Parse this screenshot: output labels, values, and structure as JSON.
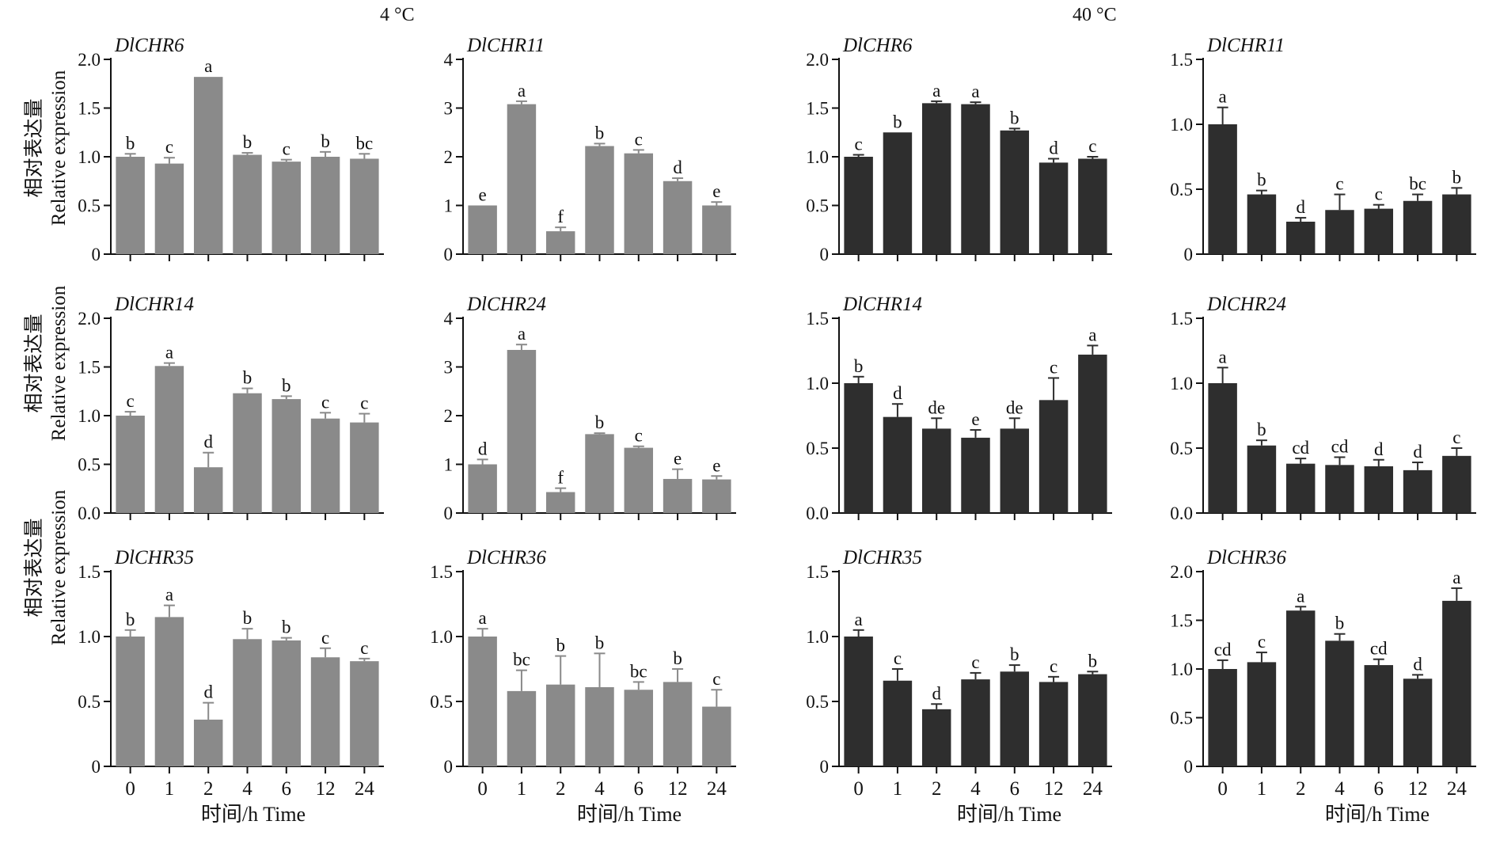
{
  "conditions": [
    "4 °C",
    "40 °C"
  ],
  "y_label_cn": "相对表达量",
  "y_label_en": "Relative expression",
  "x_label": "时间/h  Time",
  "colors": {
    "cold_bar": "#8a8a8a",
    "heat_bar": "#2e2e2e",
    "axis": "#111111"
  },
  "chart_data": [
    {
      "type": "bar",
      "condition": "4 °C",
      "title": "DlCHR6",
      "categories": [
        "0",
        "1",
        "2",
        "4",
        "6",
        "12",
        "24"
      ],
      "values": [
        1.0,
        0.93,
        1.82,
        1.02,
        0.95,
        1.0,
        0.98
      ],
      "errors": [
        0.03,
        0.06,
        0.0,
        0.02,
        0.02,
        0.05,
        0.05
      ],
      "letters": [
        "b",
        "c",
        "a",
        "b",
        "c",
        "b",
        "bc"
      ],
      "ylim": [
        0,
        2.0
      ],
      "yticks": [
        "0",
        "0.5",
        "1.0",
        "1.5",
        "2.0"
      ]
    },
    {
      "type": "bar",
      "condition": "4 °C",
      "title": "DlCHR11",
      "categories": [
        "0",
        "1",
        "2",
        "4",
        "6",
        "12",
        "24"
      ],
      "values": [
        1.0,
        3.08,
        0.47,
        2.22,
        2.07,
        1.5,
        1.0
      ],
      "errors": [
        0.0,
        0.06,
        0.08,
        0.05,
        0.07,
        0.06,
        0.07
      ],
      "letters": [
        "e",
        "a",
        "f",
        "b",
        "c",
        "d",
        "e"
      ],
      "ylim": [
        0,
        4
      ],
      "yticks": [
        "0",
        "1",
        "2",
        "3",
        "4"
      ]
    },
    {
      "type": "bar",
      "condition": "40 °C",
      "title": "DlCHR6",
      "categories": [
        "0",
        "1",
        "2",
        "4",
        "6",
        "12",
        "24"
      ],
      "values": [
        1.0,
        1.25,
        1.55,
        1.54,
        1.27,
        0.94,
        0.98
      ],
      "errors": [
        0.02,
        0.0,
        0.02,
        0.02,
        0.02,
        0.04,
        0.02
      ],
      "letters": [
        "c",
        "b",
        "a",
        "a",
        "b",
        "d",
        "c"
      ],
      "ylim": [
        0,
        2.0
      ],
      "yticks": [
        "0",
        "0.5",
        "1.0",
        "1.5",
        "2.0"
      ]
    },
    {
      "type": "bar",
      "condition": "40 °C",
      "title": "DlCHR11",
      "categories": [
        "0",
        "1",
        "2",
        "4",
        "6",
        "12",
        "24"
      ],
      "values": [
        1.0,
        0.46,
        0.25,
        0.34,
        0.35,
        0.41,
        0.46
      ],
      "errors": [
        0.13,
        0.03,
        0.03,
        0.12,
        0.03,
        0.05,
        0.05
      ],
      "letters": [
        "a",
        "b",
        "d",
        "c",
        "c",
        "bc",
        "b"
      ],
      "ylim": [
        0,
        1.5
      ],
      "yticks": [
        "0",
        "0.5",
        "1.0",
        "1.5"
      ]
    },
    {
      "type": "bar",
      "condition": "4 °C",
      "title": "DlCHR14",
      "categories": [
        "0",
        "1",
        "2",
        "4",
        "6",
        "12",
        "24"
      ],
      "values": [
        1.0,
        1.51,
        0.47,
        1.23,
        1.17,
        0.97,
        0.93
      ],
      "errors": [
        0.04,
        0.03,
        0.15,
        0.05,
        0.03,
        0.06,
        0.09
      ],
      "letters": [
        "c",
        "a",
        "d",
        "b",
        "b",
        "c",
        "c"
      ],
      "ylim": [
        0,
        2.0
      ],
      "yticks": [
        "0.0",
        "0.5",
        "1.0",
        "1.5",
        "2.0"
      ]
    },
    {
      "type": "bar",
      "condition": "4 °C",
      "title": "DlCHR24",
      "categories": [
        "0",
        "1",
        "2",
        "4",
        "6",
        "12",
        "24"
      ],
      "values": [
        1.0,
        3.35,
        0.43,
        1.62,
        1.34,
        0.7,
        0.69
      ],
      "errors": [
        0.1,
        0.11,
        0.08,
        0.02,
        0.03,
        0.2,
        0.07
      ],
      "letters": [
        "d",
        "a",
        "f",
        "b",
        "c",
        "e",
        "e"
      ],
      "ylim": [
        0,
        4
      ],
      "yticks": [
        "0",
        "1",
        "2",
        "3",
        "4"
      ]
    },
    {
      "type": "bar",
      "condition": "40 °C",
      "title": "DlCHR14",
      "categories": [
        "0",
        "1",
        "2",
        "4",
        "6",
        "12",
        "24"
      ],
      "values": [
        1.0,
        0.74,
        0.65,
        0.58,
        0.65,
        0.87,
        1.22
      ],
      "errors": [
        0.05,
        0.1,
        0.08,
        0.06,
        0.08,
        0.17,
        0.07
      ],
      "letters": [
        "b",
        "d",
        "de",
        "e",
        "de",
        "c",
        "a"
      ],
      "ylim": [
        0,
        1.5
      ],
      "yticks": [
        "0.0",
        "0.5",
        "1.0",
        "1.5"
      ]
    },
    {
      "type": "bar",
      "condition": "40 °C",
      "title": "DlCHR24",
      "categories": [
        "0",
        "1",
        "2",
        "4",
        "6",
        "12",
        "24"
      ],
      "values": [
        1.0,
        0.52,
        0.38,
        0.37,
        0.36,
        0.33,
        0.44
      ],
      "errors": [
        0.12,
        0.04,
        0.04,
        0.06,
        0.05,
        0.06,
        0.06
      ],
      "letters": [
        "a",
        "b",
        "cd",
        "cd",
        "d",
        "d",
        "c"
      ],
      "ylim": [
        0,
        1.5
      ],
      "yticks": [
        "0.0",
        "0.5",
        "1.0",
        "1.5"
      ]
    },
    {
      "type": "bar",
      "condition": "4 °C",
      "title": "DlCHR35",
      "categories": [
        "0",
        "1",
        "2",
        "4",
        "6",
        "12",
        "24"
      ],
      "values": [
        1.0,
        1.15,
        0.36,
        0.98,
        0.97,
        0.84,
        0.81
      ],
      "errors": [
        0.05,
        0.09,
        0.13,
        0.08,
        0.02,
        0.07,
        0.02
      ],
      "letters": [
        "b",
        "a",
        "d",
        "b",
        "b",
        "c",
        "c"
      ],
      "ylim": [
        0,
        1.5
      ],
      "yticks": [
        "0",
        "0.5",
        "1.0",
        "1.5"
      ]
    },
    {
      "type": "bar",
      "condition": "4 °C",
      "title": "DlCHR36",
      "categories": [
        "0",
        "1",
        "2",
        "4",
        "6",
        "12",
        "24"
      ],
      "values": [
        1.0,
        0.58,
        0.63,
        0.61,
        0.59,
        0.65,
        0.46
      ],
      "errors": [
        0.06,
        0.16,
        0.22,
        0.26,
        0.06,
        0.1,
        0.13
      ],
      "letters": [
        "a",
        "bc",
        "b",
        "b",
        "bc",
        "b",
        "c"
      ],
      "ylim": [
        0,
        1.5
      ],
      "yticks": [
        "0",
        "0.5",
        "1.0",
        "1.5"
      ]
    },
    {
      "type": "bar",
      "condition": "40 °C",
      "title": "DlCHR35",
      "categories": [
        "0",
        "1",
        "2",
        "4",
        "6",
        "12",
        "24"
      ],
      "values": [
        1.0,
        0.66,
        0.44,
        0.67,
        0.73,
        0.65,
        0.71
      ],
      "errors": [
        0.05,
        0.09,
        0.04,
        0.05,
        0.05,
        0.04,
        0.02
      ],
      "letters": [
        "a",
        "c",
        "d",
        "c",
        "b",
        "c",
        "b"
      ],
      "ylim": [
        0,
        1.5
      ],
      "yticks": [
        "0",
        "0.5",
        "1.0",
        "1.5"
      ]
    },
    {
      "type": "bar",
      "condition": "40 °C",
      "title": "DlCHR36",
      "categories": [
        "0",
        "1",
        "2",
        "4",
        "6",
        "12",
        "24"
      ],
      "values": [
        1.0,
        1.07,
        1.6,
        1.29,
        1.04,
        0.9,
        1.7
      ],
      "errors": [
        0.09,
        0.1,
        0.04,
        0.07,
        0.06,
        0.04,
        0.13
      ],
      "letters": [
        "cd",
        "c",
        "a",
        "b",
        "cd",
        "d",
        "a"
      ],
      "ylim": [
        0,
        2.0
      ],
      "yticks": [
        "0",
        "0.5",
        "1.0",
        "1.5",
        "2.0"
      ]
    }
  ]
}
